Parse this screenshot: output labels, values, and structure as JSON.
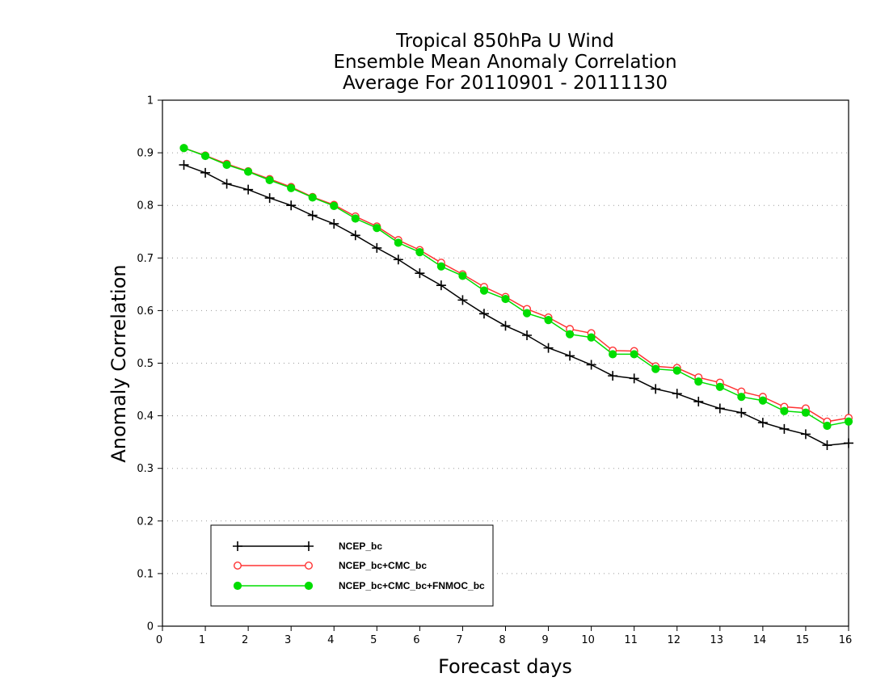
{
  "chart_data": {
    "type": "line",
    "title": [
      "Tropical 850hPa U Wind",
      "Ensemble Mean Anomaly Correlation",
      "Average For 20110901 - 20111130"
    ],
    "xlabel": "Forecast days",
    "ylabel": "Anomaly Correlation",
    "xlim": [
      0,
      16
    ],
    "ylim": [
      0,
      1
    ],
    "x_ticks": [
      0,
      1,
      2,
      3,
      4,
      5,
      6,
      7,
      8,
      9,
      10,
      11,
      12,
      13,
      14,
      15,
      16
    ],
    "x_tick_labels": [
      "0",
      "1",
      "2",
      "3",
      "4",
      "5",
      "6",
      "7",
      "8",
      "9",
      "10",
      "11",
      "12",
      "13",
      "14",
      "15",
      "16"
    ],
    "y_ticks": [
      0,
      0.1,
      0.2,
      0.3,
      0.4,
      0.5,
      0.6,
      0.7,
      0.8,
      0.9,
      1
    ],
    "y_tick_labels": [
      "0",
      "0.1",
      "0.2",
      "0.3",
      "0.4",
      "0.5",
      "0.6",
      "0.7",
      "0.8",
      "0.9",
      "1"
    ],
    "grid": "horizontal dotted",
    "legend_position": "bottom-left",
    "x": [
      0.5,
      1,
      1.5,
      2,
      2.5,
      3,
      3.5,
      4,
      4.5,
      5,
      5.5,
      6,
      6.5,
      7,
      7.5,
      8,
      8.5,
      9,
      9.5,
      10,
      10.5,
      11,
      11.5,
      12,
      12.5,
      13,
      13.5,
      14,
      14.5,
      15,
      15.5,
      16
    ],
    "series": [
      {
        "name": "NCEP_bc",
        "color": "#000000",
        "marker": "plus",
        "values": [
          0.877,
          0.862,
          0.841,
          0.83,
          0.814,
          0.8,
          0.781,
          0.765,
          0.743,
          0.719,
          0.697,
          0.671,
          0.648,
          0.62,
          0.594,
          0.571,
          0.553,
          0.529,
          0.514,
          0.497,
          0.476,
          0.471,
          0.451,
          0.442,
          0.427,
          0.414,
          0.406,
          0.387,
          0.375,
          0.365,
          0.344,
          0.348
        ]
      },
      {
        "name": "NCEP_bc+CMC_bc",
        "color": "#ff3333",
        "marker": "open-circle",
        "values": [
          0.909,
          0.895,
          0.879,
          0.865,
          0.85,
          0.835,
          0.816,
          0.801,
          0.779,
          0.76,
          0.734,
          0.715,
          0.691,
          0.669,
          0.645,
          0.626,
          0.603,
          0.587,
          0.565,
          0.557,
          0.524,
          0.523,
          0.494,
          0.491,
          0.473,
          0.463,
          0.446,
          0.436,
          0.417,
          0.414,
          0.389,
          0.396
        ]
      },
      {
        "name": "NCEP_bc+CMC_bc+FNMOC_bc",
        "color": "#00dd00",
        "marker": "filled-circle",
        "values": [
          0.909,
          0.894,
          0.877,
          0.864,
          0.848,
          0.833,
          0.815,
          0.799,
          0.775,
          0.757,
          0.729,
          0.711,
          0.684,
          0.666,
          0.638,
          0.622,
          0.595,
          0.582,
          0.555,
          0.549,
          0.517,
          0.517,
          0.489,
          0.486,
          0.465,
          0.455,
          0.436,
          0.429,
          0.409,
          0.406,
          0.381,
          0.389
        ]
      }
    ]
  }
}
